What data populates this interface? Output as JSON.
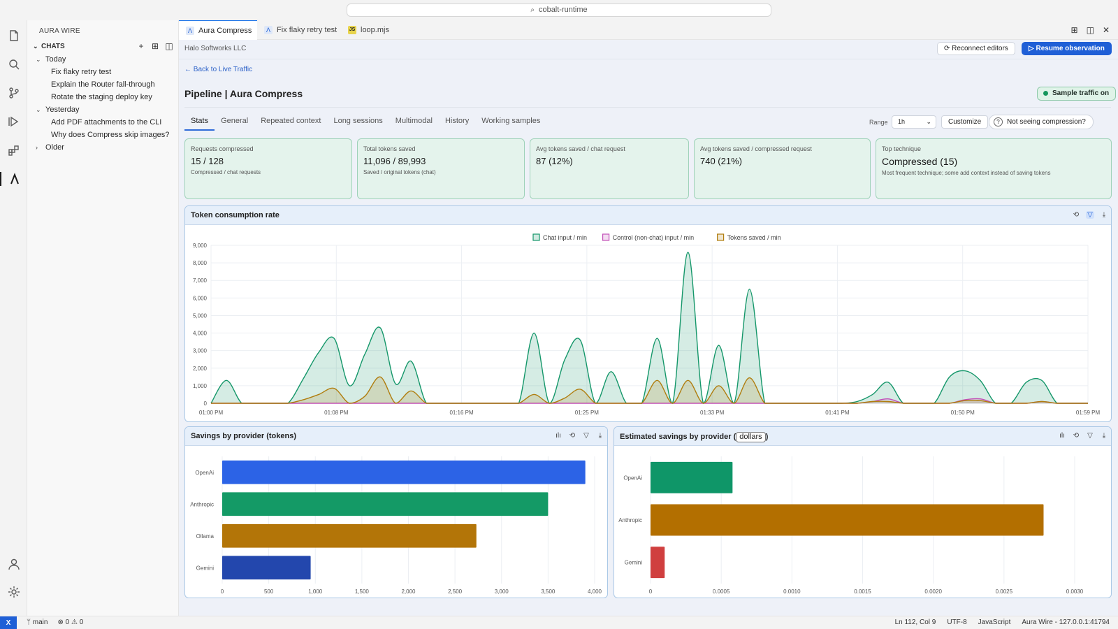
{
  "command_center": {
    "text": "cobalt-runtime"
  },
  "sidebar": {
    "title": "AURA WIRE",
    "section": "CHATS",
    "groups": [
      {
        "label": "Today",
        "items": [
          "Fix flaky retry test",
          "Explain the Router fall-through",
          "Rotate the staging deploy key"
        ]
      },
      {
        "label": "Yesterday",
        "items": [
          "Add PDF attachments to the CLI",
          "Why does Compress skip images?"
        ]
      },
      {
        "label": "Older",
        "items": []
      }
    ]
  },
  "tabs": [
    {
      "label": "Aura Compress",
      "icon": "aura-icon"
    },
    {
      "label": "Fix flaky retry test",
      "icon": "aura-icon"
    },
    {
      "label": "loop.mjs",
      "icon": "js-file-icon"
    }
  ],
  "header": {
    "company": "Halo Softworks LLC",
    "reconnect_label": "Reconnect editors",
    "resume_label": "Resume observation",
    "back_link": "← Back to Live Traffic",
    "title": "Pipeline | Aura Compress",
    "sample_badge": "Sample traffic on"
  },
  "subtabs": [
    "Stats",
    "General",
    "Repeated context",
    "Long sessions",
    "Multimodal",
    "History",
    "Working samples"
  ],
  "controls": {
    "range_label": "Range",
    "range_value": "1h",
    "customize": "Customize",
    "help": "Not seeing compression?"
  },
  "stats": [
    {
      "label": "Requests compressed",
      "value": "15 / 128",
      "sub": "Compressed / chat requests"
    },
    {
      "label": "Total tokens saved",
      "value": "11,096 / 89,993",
      "sub": "Saved / original tokens (chat)"
    },
    {
      "label": "Avg tokens saved / chat request",
      "value": "87 (12%)",
      "sub": ""
    },
    {
      "label": "Avg tokens saved / compressed request",
      "value": "740 (21%)",
      "sub": ""
    },
    {
      "label": "Top technique",
      "value": "Compressed (15)",
      "sub": "Most frequent technique; some add context instead of saving tokens"
    }
  ],
  "panels": {
    "consumption_title": "Token consumption rate",
    "savings_tokens_title": "Savings by provider (tokens)",
    "savings_dollars_prefix": "Estimated savings by provider (",
    "savings_dollars_chip": "dollars",
    "savings_dollars_suffix": ")"
  },
  "status": {
    "branch": "main",
    "problems": "⊗ 0 ⚠ 0",
    "position": "Ln 112, Col 9",
    "encoding": "UTF-8",
    "language": "JavaScript",
    "server": "Aura Wire - 127.0.0.1:41794",
    "remote": "X"
  },
  "colors": {
    "accent": "#1f5fd6",
    "chat": "#15976a",
    "control": "#c24fb8",
    "saved": "#b07d0e",
    "card_border": "#9fd2b9"
  },
  "chart_data": [
    {
      "type": "area",
      "title": "Token consumption rate",
      "x_ticks": [
        "01:00 PM",
        "01:08 PM",
        "01:16 PM",
        "01:25 PM",
        "01:33 PM",
        "01:41 PM",
        "01:50 PM",
        "01:59 PM"
      ],
      "ylim": [
        0,
        9000
      ],
      "y_ticks": [
        "9,000",
        "8,000",
        "7,000",
        "6,000",
        "5,000",
        "4,000",
        "3,000",
        "2,000",
        "1,000",
        "0"
      ],
      "x_minutes": [
        0,
        1,
        2,
        3,
        4,
        5,
        6,
        7,
        8,
        9,
        10,
        11,
        12,
        13,
        14,
        15,
        16,
        17,
        18,
        19,
        20,
        21,
        22,
        23,
        24,
        25,
        26,
        27,
        28,
        29,
        30,
        31,
        32,
        33,
        34,
        35,
        36,
        37,
        38,
        39,
        40,
        41,
        42,
        43,
        44,
        45,
        46,
        47,
        48,
        49,
        50,
        51,
        52,
        53,
        54,
        55,
        56,
        57
      ],
      "series": [
        {
          "name": "Chat input / min",
          "values": [
            0,
            1300,
            0,
            0,
            0,
            0,
            1400,
            2900,
            3700,
            1000,
            2800,
            4300,
            1100,
            2400,
            0,
            0,
            0,
            0,
            0,
            0,
            0,
            4000,
            0,
            2500,
            3600,
            0,
            1800,
            0,
            0,
            3700,
            0,
            8600,
            0,
            3300,
            0,
            6500,
            0,
            0,
            0,
            0,
            0,
            0,
            100,
            500,
            1200,
            0,
            0,
            0,
            1500,
            1850,
            1300,
            0,
            0,
            1200,
            1300,
            0,
            0,
            0
          ]
        },
        {
          "name": "Control (non-chat) input / min",
          "values": [
            0,
            0,
            0,
            0,
            0,
            0,
            0,
            0,
            0,
            0,
            0,
            0,
            0,
            0,
            0,
            0,
            0,
            0,
            0,
            0,
            0,
            0,
            0,
            0,
            0,
            0,
            0,
            0,
            0,
            0,
            0,
            0,
            0,
            0,
            0,
            0,
            0,
            0,
            0,
            0,
            0,
            0,
            0,
            100,
            250,
            0,
            0,
            0,
            0,
            200,
            250,
            0,
            0,
            0,
            100,
            0,
            0,
            0
          ]
        },
        {
          "name": "Tokens saved / min",
          "values": [
            0,
            0,
            0,
            0,
            0,
            0,
            200,
            500,
            850,
            0,
            400,
            1500,
            0,
            700,
            0,
            0,
            0,
            0,
            0,
            0,
            0,
            500,
            0,
            300,
            800,
            0,
            0,
            0,
            0,
            1300,
            0,
            1300,
            0,
            1000,
            0,
            1450,
            0,
            0,
            0,
            0,
            0,
            0,
            0,
            100,
            100,
            0,
            0,
            0,
            0,
            150,
            150,
            0,
            0,
            0,
            100,
            0,
            0,
            0
          ]
        }
      ],
      "legend": "top-center"
    },
    {
      "type": "bar",
      "orientation": "horizontal",
      "title": "Savings by provider (tokens)",
      "categories": [
        "OpenAi",
        "Anthropic",
        "Ollama",
        "Gemini"
      ],
      "values": [
        3900,
        3500,
        2730,
        950
      ],
      "xlim": [
        0,
        4000
      ],
      "x_ticks": [
        "0",
        "500",
        "1,000",
        "1,500",
        "2,000",
        "2,500",
        "3,000",
        "3,500",
        "4,000"
      ],
      "colors": [
        "#2c63e6",
        "#149a66",
        "#b37508",
        "#2347ad"
      ]
    },
    {
      "type": "bar",
      "orientation": "horizontal",
      "title": "Estimated savings by provider (dollars)",
      "categories": [
        "OpenAi",
        "Anthropic",
        "Gemini"
      ],
      "values": [
        0.00058,
        0.00278,
        0.0001
      ],
      "xlim": [
        0,
        0.003
      ],
      "x_ticks": [
        "0",
        "0.0005",
        "0.0010",
        "0.0015",
        "0.0020",
        "0.0025",
        "0.0030"
      ],
      "colors": [
        "#0f9668",
        "#b36f00",
        "#d03f3f"
      ]
    }
  ]
}
